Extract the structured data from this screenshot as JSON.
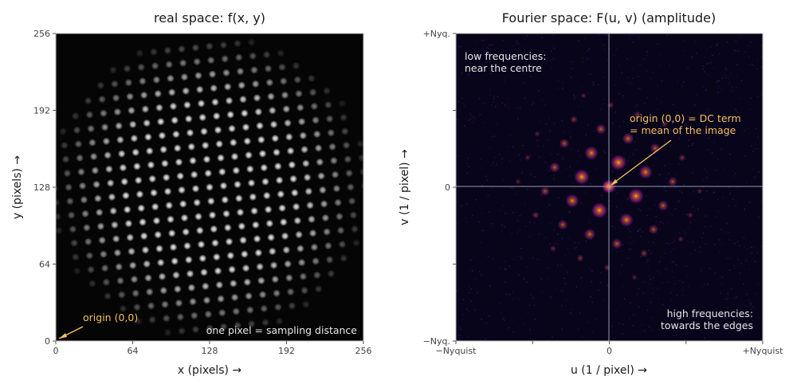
{
  "colors": {
    "annotation": "#f5c060",
    "note": "#e8e8e8",
    "guide": "#9a9ab0"
  },
  "chart_data": [
    {
      "type": "heatmap",
      "title": "real space:  f(x, y)",
      "xlabel": "x   (pixels)  →",
      "ylabel": "y   (pixels)  →",
      "xlim": [
        0,
        256
      ],
      "ylim": [
        0,
        256
      ],
      "xticks": [
        "0",
        "64",
        "128",
        "192",
        "256"
      ],
      "yticks": [
        "0",
        "64",
        "128",
        "192",
        "256"
      ],
      "colormap": "gray",
      "annotations": [
        {
          "text": "origin (0,0)",
          "points_to": [
            0,
            0
          ]
        },
        {
          "text": "one pixel = sampling distance"
        }
      ]
    },
    {
      "type": "heatmap",
      "title": "Fourier space:  F(u, v)   (amplitude)",
      "xlabel": "u   (1 / pixel)  →",
      "ylabel": "v   (1 / pixel)  →",
      "xticks": [
        "−Nyquist",
        "",
        "0",
        "",
        "+Nyquist"
      ],
      "yticks": [
        "−Nyq.",
        "",
        "0",
        "",
        "+Nyq."
      ],
      "colormap": "inferno",
      "annotations": [
        {
          "text": "low frequencies:\nnear the centre"
        },
        {
          "text": "origin (0,0) = DC term\n= mean of the image",
          "points_to": [
            0,
            0
          ]
        },
        {
          "text": "high frequencies:\ntowards the edges"
        }
      ]
    }
  ]
}
